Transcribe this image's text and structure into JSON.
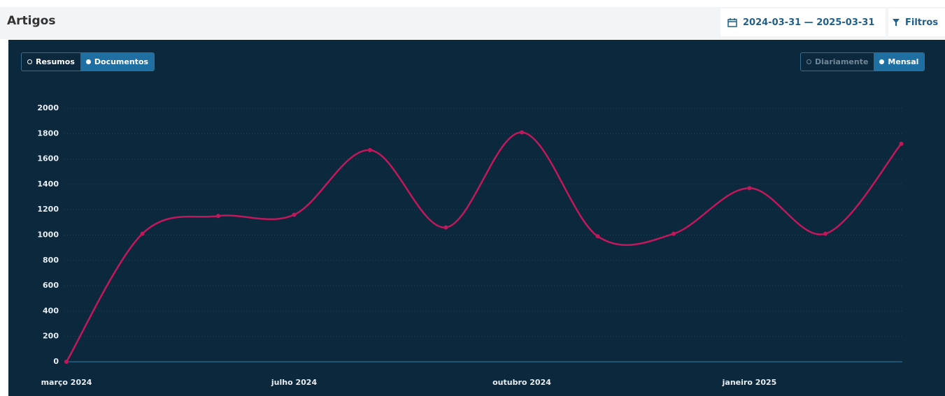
{
  "header": {
    "title": "Artigos",
    "date_range": "2024-03-31 — 2025-03-31",
    "filter_button": "Filtros"
  },
  "toggles": {
    "mode": [
      "Resumos",
      "Documentos"
    ],
    "interval": [
      "Diariamente",
      "Mensal"
    ]
  },
  "chart_data": {
    "type": "line",
    "categories": [
      "março 2024",
      null,
      null,
      "julho 2024",
      null,
      null,
      "outubro 2024",
      null,
      null,
      "janeiro 2025",
      null,
      null
    ],
    "values": [
      0,
      1010,
      1150,
      1160,
      1670,
      1060,
      1810,
      990,
      1010,
      1370,
      1010,
      1720
    ],
    "color": "#c2185b",
    "ylim": [
      0,
      2000
    ],
    "yticks": [
      0,
      200,
      400,
      600,
      800,
      1000,
      1200,
      1400,
      1600,
      1800,
      2000
    ],
    "grid": true
  }
}
